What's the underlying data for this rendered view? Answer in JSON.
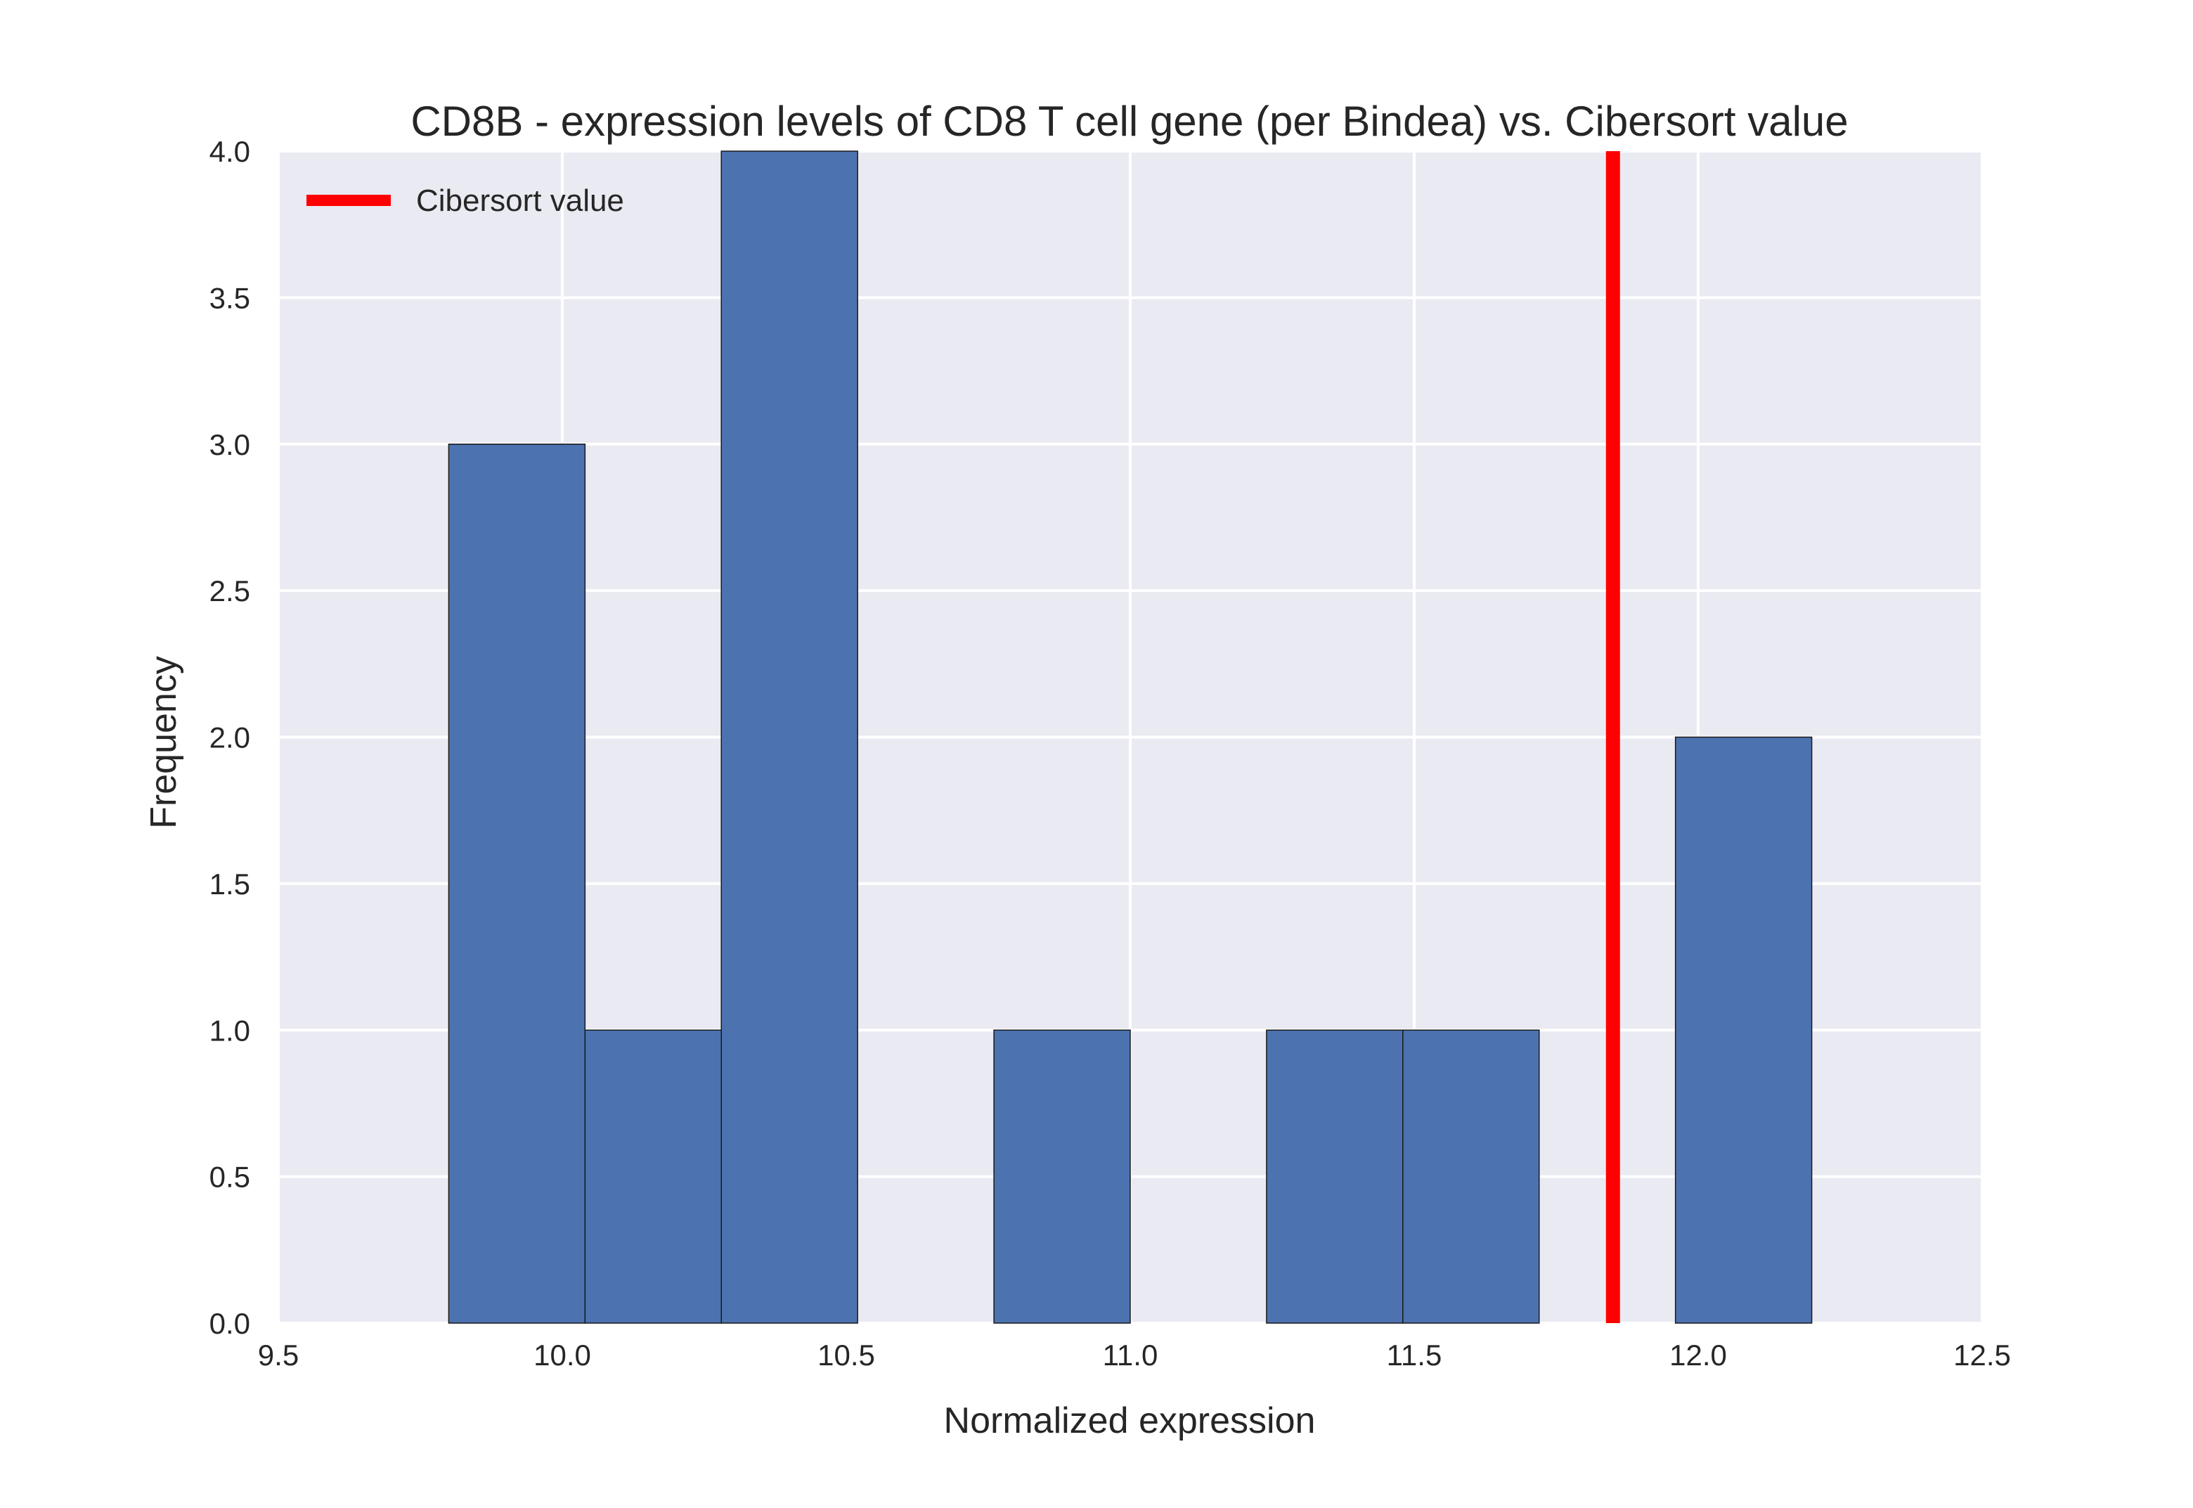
{
  "chart_data": {
    "type": "histogram",
    "title": "CD8B - expression levels of CD8 T cell gene (per Bindea) vs. Cibersort value",
    "xlabel": "Normalized expression",
    "ylabel": "Frequency",
    "xlim": [
      9.5,
      12.5
    ],
    "ylim": [
      0.0,
      4.0
    ],
    "xticks": [
      "9.5",
      "10.0",
      "10.5",
      "11.0",
      "11.5",
      "12.0",
      "12.5"
    ],
    "yticks": [
      "0.0",
      "0.5",
      "1.0",
      "1.5",
      "2.0",
      "2.5",
      "3.0",
      "3.5",
      "4.0"
    ],
    "bins": [
      {
        "start": 9.8,
        "end": 10.04,
        "count": 3
      },
      {
        "start": 10.04,
        "end": 10.28,
        "count": 1
      },
      {
        "start": 10.28,
        "end": 10.52,
        "count": 4
      },
      {
        "start": 10.52,
        "end": 10.76,
        "count": 0
      },
      {
        "start": 10.76,
        "end": 11.0,
        "count": 1
      },
      {
        "start": 11.0,
        "end": 11.24,
        "count": 0
      },
      {
        "start": 11.24,
        "end": 11.48,
        "count": 1
      },
      {
        "start": 11.48,
        "end": 11.72,
        "count": 1
      },
      {
        "start": 11.72,
        "end": 11.96,
        "count": 0
      },
      {
        "start": 11.96,
        "end": 12.2,
        "count": 2
      }
    ],
    "vline": {
      "x": 11.85,
      "label": "Cibersort value",
      "color": "#ff0000"
    },
    "bar_color": "#4c72b0",
    "background_color": "#eaeaf2",
    "grid": true,
    "legend": {
      "position": "top-left",
      "entries": [
        "Cibersort value"
      ]
    }
  }
}
